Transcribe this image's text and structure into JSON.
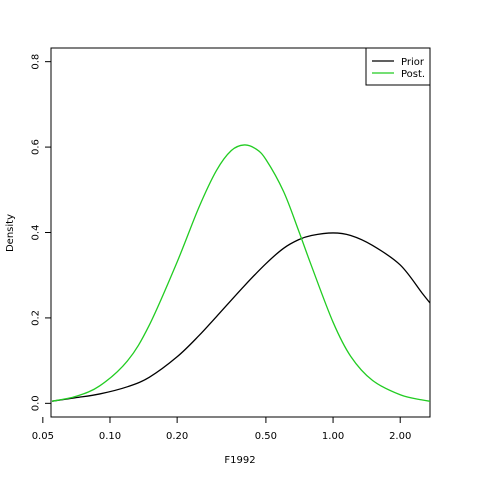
{
  "chart_data": {
    "type": "line",
    "xlabel": "F1992",
    "ylabel": "Density",
    "x_scale": "log",
    "xlim": [
      0.0544,
      2.72
    ],
    "ylim": [
      -0.032,
      0.832
    ],
    "x_ticks": [
      0.05,
      0.1,
      0.2,
      0.5,
      1.0,
      2.0
    ],
    "x_tick_labels": [
      "0.05",
      "0.10",
      "0.20",
      "0.50",
      "1.00",
      "2.00"
    ],
    "y_ticks": [
      0.0,
      0.2,
      0.4,
      0.6,
      0.8
    ],
    "y_tick_labels": [
      "0.0",
      "0.2",
      "0.4",
      "0.6",
      "0.8"
    ],
    "legend": {
      "placement": "top-right"
    },
    "series": [
      {
        "name": "Prior",
        "color": "#000000",
        "x": [
          0.055,
          0.07,
          0.09,
          0.12,
          0.15,
          0.2,
          0.25,
          0.3,
          0.4,
          0.5,
          0.6,
          0.7,
          0.8,
          1.0,
          1.2,
          1.5,
          2.0,
          2.5,
          2.72
        ],
        "y": [
          0.005,
          0.013,
          0.022,
          0.039,
          0.061,
          0.109,
          0.158,
          0.203,
          0.275,
          0.327,
          0.363,
          0.383,
          0.393,
          0.399,
          0.393,
          0.37,
          0.324,
          0.259,
          0.235
        ]
      },
      {
        "name": "Post.",
        "color": "#22cc22",
        "x": [
          0.055,
          0.07,
          0.09,
          0.12,
          0.15,
          0.2,
          0.25,
          0.3,
          0.35,
          0.4,
          0.45,
          0.5,
          0.6,
          0.7,
          0.8,
          1.0,
          1.2,
          1.5,
          2.0,
          2.5,
          2.72
        ],
        "y": [
          0.005,
          0.016,
          0.041,
          0.1,
          0.183,
          0.331,
          0.458,
          0.545,
          0.592,
          0.605,
          0.596,
          0.571,
          0.496,
          0.405,
          0.322,
          0.19,
          0.11,
          0.054,
          0.02,
          0.008,
          0.005
        ]
      }
    ]
  }
}
